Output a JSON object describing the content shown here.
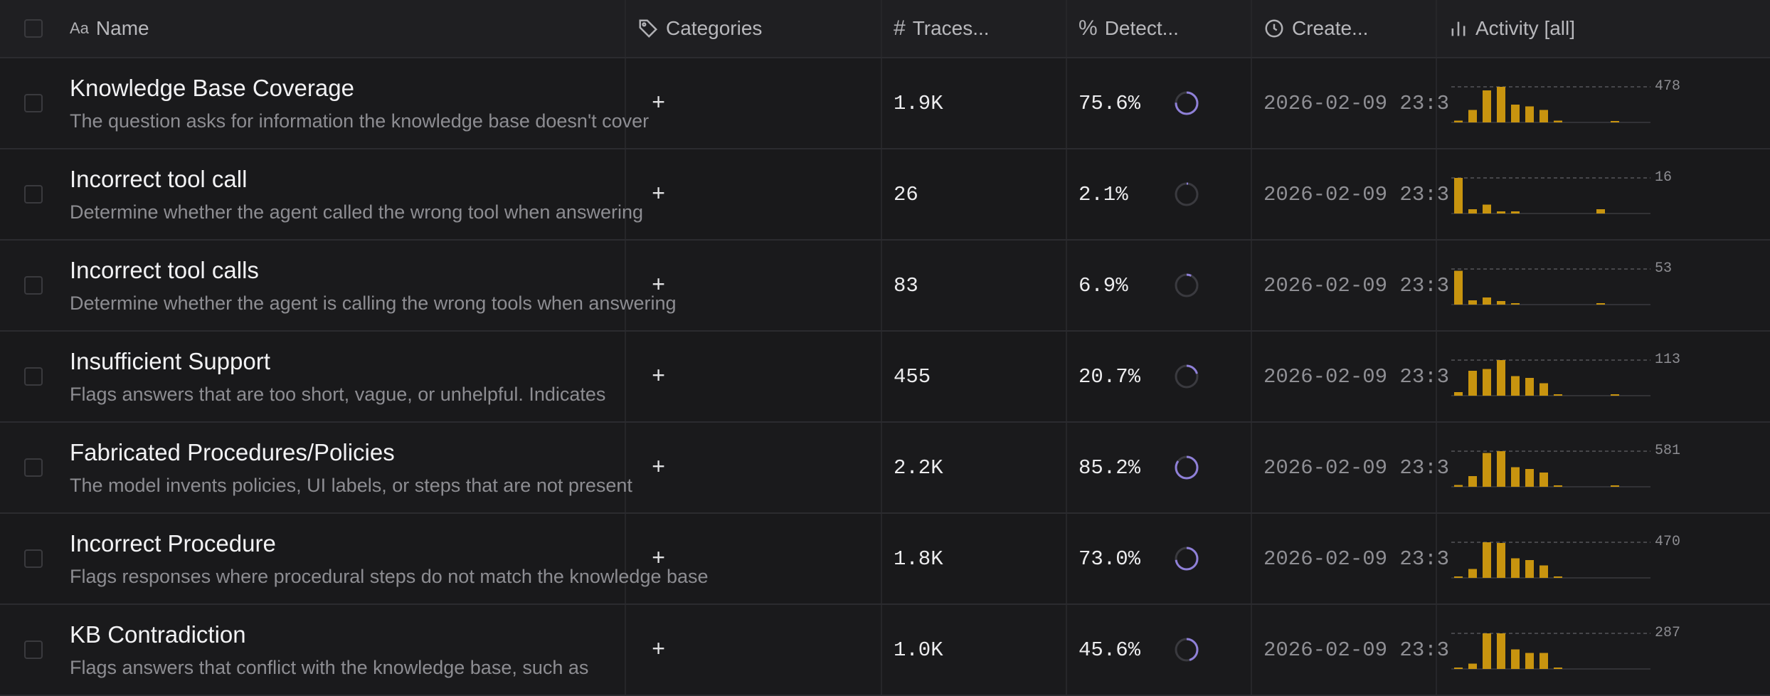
{
  "header": {
    "name": "Name",
    "categories": "Categories",
    "traces": "Traces...",
    "detect": "Detect...",
    "created": "Create...",
    "activity": "Activity [all]",
    "icons": {
      "name": "text-type-icon",
      "categories": "tag-icon",
      "traces": "hash-icon",
      "detect": "percent-icon",
      "created": "clock-icon",
      "activity": "bar-chart-icon"
    }
  },
  "colors": {
    "bar": "#c8940f",
    "ring": "#8f80d8",
    "ring_track": "#3a3a3f"
  },
  "rows": [
    {
      "title": "Knowledge Base Coverage",
      "desc": "The question asks for information the knowledge base doesn't cover",
      "cat": "+",
      "traces": "1.9K",
      "detect": "75.6%",
      "detect_value": 0.756,
      "created": "2026-02-09 23:3",
      "activity_max": "478",
      "bars": [
        0.05,
        0.35,
        0.9,
        1.0,
        0.5,
        0.45,
        0.35,
        0.05,
        0.0,
        0.0,
        0.0,
        0.02,
        0.0,
        0.0
      ]
    },
    {
      "title": "Incorrect tool call",
      "desc": "Determine whether the agent called the wrong tool when answering",
      "cat": "+",
      "traces": "26",
      "detect": "2.1%",
      "detect_value": 0.021,
      "created": "2026-02-09 23:3",
      "activity_max": "16",
      "bars": [
        1.0,
        0.12,
        0.25,
        0.06,
        0.06,
        0.0,
        0.0,
        0.0,
        0.0,
        0.0,
        0.12,
        0.0,
        0.0,
        0.0
      ]
    },
    {
      "title": "Incorrect tool calls",
      "desc": "Determine whether the agent is calling the wrong tools when answering",
      "cat": "+",
      "traces": "83",
      "detect": "6.9%",
      "detect_value": 0.069,
      "created": "2026-02-09 23:3",
      "activity_max": "53",
      "bars": [
        0.95,
        0.12,
        0.2,
        0.1,
        0.04,
        0.0,
        0.0,
        0.0,
        0.0,
        0.0,
        0.02,
        0.0,
        0.0,
        0.0
      ]
    },
    {
      "title": "Insufficient Support",
      "desc": "Flags answers that are too short, vague, or unhelpful. Indicates",
      "cat": "+",
      "traces": "455",
      "detect": "20.7%",
      "detect_value": 0.207,
      "created": "2026-02-09 23:3",
      "activity_max": "113",
      "bars": [
        0.1,
        0.7,
        0.75,
        1.0,
        0.55,
        0.5,
        0.35,
        0.04,
        0.0,
        0.0,
        0.0,
        0.02,
        0.0,
        0.0
      ]
    },
    {
      "title": "Fabricated Procedures/Policies",
      "desc": "The model invents policies, UI labels, or steps that are not present",
      "cat": "+",
      "traces": "2.2K",
      "detect": "85.2%",
      "detect_value": 0.852,
      "created": "2026-02-09 23:3",
      "activity_max": "581",
      "bars": [
        0.05,
        0.3,
        0.95,
        1.0,
        0.55,
        0.5,
        0.4,
        0.04,
        0.0,
        0.0,
        0.0,
        0.02,
        0.0,
        0.0
      ]
    },
    {
      "title": "Incorrect Procedure",
      "desc": "Flags responses where procedural steps do not match the knowledge base",
      "cat": "+",
      "traces": "1.8K",
      "detect": "73.0%",
      "detect_value": 0.73,
      "created": "2026-02-09 23:3",
      "activity_max": "470",
      "bars": [
        0.02,
        0.25,
        1.0,
        0.98,
        0.55,
        0.5,
        0.35,
        0.04,
        0.0,
        0.0,
        0.0,
        0.0,
        0.0,
        0.0
      ]
    },
    {
      "title": "KB Contradiction",
      "desc": "Flags answers that conflict with the knowledge base, such as",
      "cat": "+",
      "traces": "1.0K",
      "detect": "45.6%",
      "detect_value": 0.456,
      "created": "2026-02-09 23:3",
      "activity_max": "287",
      "bars": [
        0.03,
        0.15,
        1.0,
        1.0,
        0.55,
        0.45,
        0.45,
        0.04,
        0.0,
        0.0,
        0.0,
        0.0,
        0.0,
        0.0
      ]
    }
  ]
}
